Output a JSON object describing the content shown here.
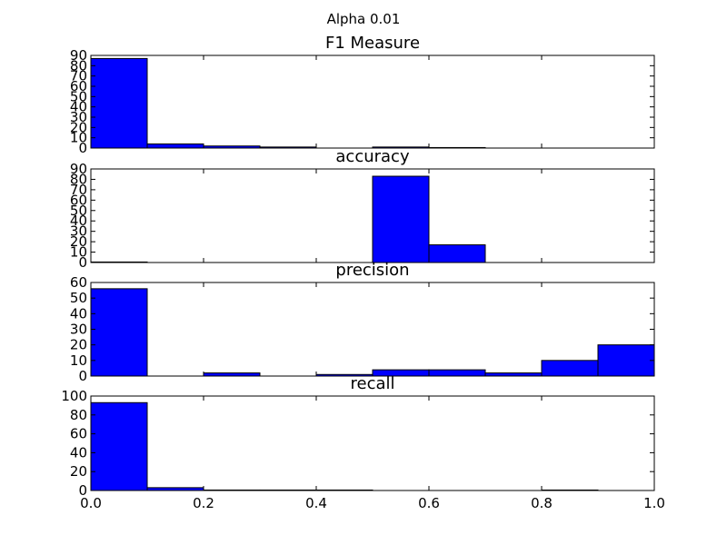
{
  "figure": {
    "suptitle": "Alpha 0.01"
  },
  "chart_data": [
    {
      "type": "bar",
      "title": "F1 Measure",
      "bin_edges": [
        0.0,
        0.1,
        0.2,
        0.3,
        0.4,
        0.5,
        0.6,
        0.7,
        0.8,
        0.9,
        1.0
      ],
      "values": [
        87,
        4,
        2,
        1,
        0,
        1,
        0.5,
        0,
        0,
        0
      ],
      "xlim": [
        0,
        1
      ],
      "ylim": [
        0,
        90
      ],
      "yticks": [
        0,
        10,
        20,
        30,
        40,
        50,
        60,
        70,
        80,
        90
      ],
      "show_xtick_labels": false,
      "color": "#0000ff",
      "grid": false
    },
    {
      "type": "bar",
      "title": "accuracy",
      "bin_edges": [
        0.0,
        0.1,
        0.2,
        0.3,
        0.4,
        0.5,
        0.6,
        0.7,
        0.8,
        0.9,
        1.0
      ],
      "values": [
        0.5,
        0,
        0,
        0,
        0,
        83,
        17,
        0,
        0,
        0
      ],
      "xlim": [
        0,
        1
      ],
      "ylim": [
        0,
        90
      ],
      "yticks": [
        0,
        10,
        20,
        30,
        40,
        50,
        60,
        70,
        80,
        90
      ],
      "show_xtick_labels": false,
      "color": "#0000ff",
      "grid": false
    },
    {
      "type": "bar",
      "title": "precision",
      "bin_edges": [
        0.0,
        0.1,
        0.2,
        0.3,
        0.4,
        0.5,
        0.6,
        0.7,
        0.8,
        0.9,
        1.0
      ],
      "values": [
        56,
        0,
        2,
        0,
        1,
        4,
        4,
        2,
        10,
        20
      ],
      "xlim": [
        0,
        1
      ],
      "ylim": [
        0,
        60
      ],
      "yticks": [
        0,
        10,
        20,
        30,
        40,
        50,
        60
      ],
      "show_xtick_labels": false,
      "color": "#0000ff",
      "grid": false
    },
    {
      "type": "bar",
      "title": "recall",
      "bin_edges": [
        0.0,
        0.1,
        0.2,
        0.3,
        0.4,
        0.5,
        0.6,
        0.7,
        0.8,
        0.9,
        1.0
      ],
      "values": [
        93,
        3,
        0.5,
        0.5,
        0.5,
        0,
        0,
        0,
        0.5,
        0
      ],
      "xlim": [
        0,
        1
      ],
      "ylim": [
        0,
        100
      ],
      "yticks": [
        0,
        20,
        40,
        60,
        80,
        100
      ],
      "xticks": [
        "0.0",
        "0.2",
        "0.4",
        "0.6",
        "0.8",
        "1.0"
      ],
      "show_xtick_labels": true,
      "color": "#0000ff",
      "grid": false
    }
  ]
}
